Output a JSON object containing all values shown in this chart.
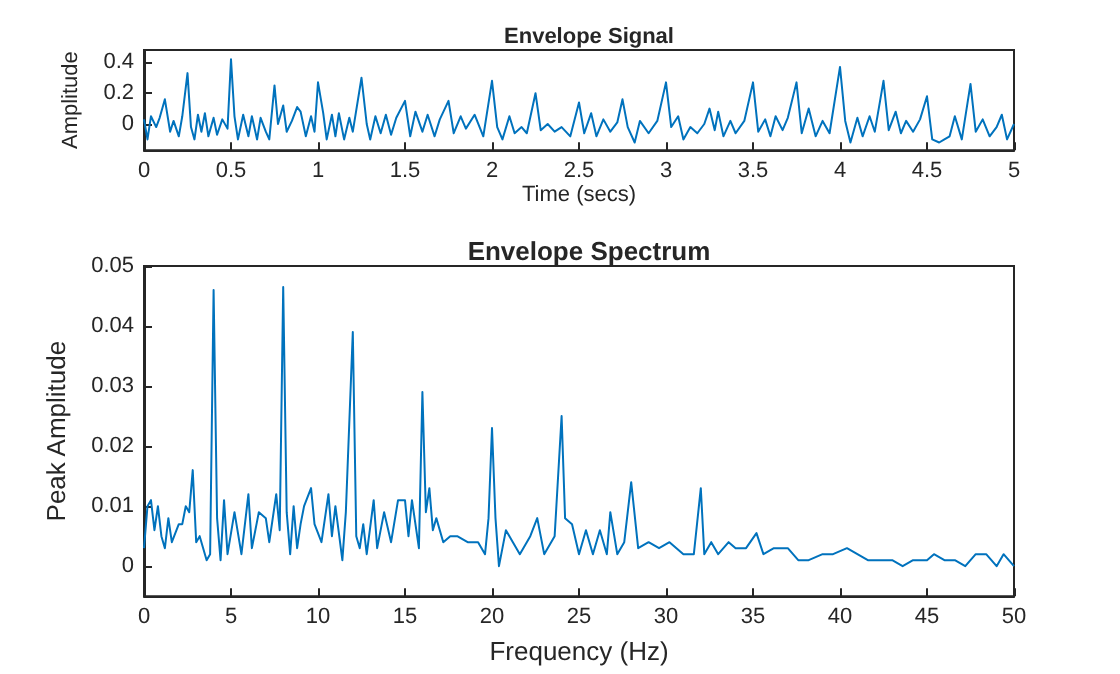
{
  "chart_data": [
    {
      "type": "line",
      "title": "Envelope Signal",
      "xlabel": "Time (secs)",
      "ylabel": "Amplitude",
      "xlim": [
        0,
        5
      ],
      "ylim": [
        -0.17,
        0.48
      ],
      "xticks": [
        0,
        0.5,
        1,
        1.5,
        2,
        2.5,
        3,
        3.5,
        4,
        4.5,
        5
      ],
      "yticks": [
        0,
        0.2,
        0.4
      ],
      "marker": "none",
      "line_style": "solid",
      "series": [
        {
          "color": "#0072bd",
          "x": [
            0,
            0.02,
            0.04,
            0.07,
            0.09,
            0.12,
            0.15,
            0.17,
            0.2,
            0.22,
            0.25,
            0.27,
            0.29,
            0.31,
            0.33,
            0.35,
            0.37,
            0.4,
            0.42,
            0.45,
            0.48,
            0.5,
            0.52,
            0.54,
            0.57,
            0.6,
            0.62,
            0.65,
            0.67,
            0.7,
            0.72,
            0.75,
            0.77,
            0.8,
            0.82,
            0.85,
            0.88,
            0.9,
            0.93,
            0.96,
            0.98,
            1.0,
            1.03,
            1.05,
            1.08,
            1.1,
            1.12,
            1.15,
            1.18,
            1.2,
            1.25,
            1.28,
            1.3,
            1.33,
            1.36,
            1.39,
            1.42,
            1.45,
            1.5,
            1.53,
            1.56,
            1.6,
            1.63,
            1.67,
            1.7,
            1.75,
            1.78,
            1.82,
            1.85,
            1.9,
            1.95,
            2.0,
            2.03,
            2.06,
            2.1,
            2.13,
            2.17,
            2.2,
            2.25,
            2.28,
            2.32,
            2.36,
            2.4,
            2.45,
            2.5,
            2.53,
            2.57,
            2.6,
            2.64,
            2.68,
            2.72,
            2.75,
            2.78,
            2.82,
            2.85,
            2.9,
            2.95,
            3.0,
            3.03,
            3.07,
            3.1,
            3.14,
            3.18,
            3.22,
            3.25,
            3.28,
            3.3,
            3.33,
            3.37,
            3.4,
            3.45,
            3.5,
            3.53,
            3.57,
            3.6,
            3.63,
            3.67,
            3.7,
            3.75,
            3.78,
            3.82,
            3.86,
            3.9,
            3.94,
            4.0,
            4.03,
            4.06,
            4.1,
            4.13,
            4.17,
            4.2,
            4.25,
            4.28,
            4.32,
            4.35,
            4.38,
            4.42,
            4.46,
            4.5,
            4.53,
            4.57,
            4.6,
            4.63,
            4.66,
            4.7,
            4.75,
            4.78,
            4.82,
            4.86,
            4.9,
            4.93,
            4.96,
            5.0
          ],
          "values": [
            0.03,
            -0.1,
            0.05,
            -0.02,
            0.04,
            0.16,
            -0.05,
            0.02,
            -0.08,
            0.05,
            0.33,
            -0.02,
            -0.1,
            0.06,
            -0.05,
            0.07,
            -0.08,
            0.04,
            -0.07,
            0.03,
            -0.03,
            0.42,
            0.05,
            -0.1,
            0.06,
            -0.08,
            0.05,
            -0.1,
            0.04,
            -0.05,
            -0.1,
            0.25,
            0.0,
            0.12,
            -0.05,
            0.02,
            0.11,
            0.08,
            -0.08,
            0.05,
            -0.05,
            0.27,
            0.07,
            -0.1,
            0.06,
            -0.08,
            0.07,
            -0.1,
            0.04,
            -0.05,
            0.3,
            0.0,
            -0.1,
            0.05,
            -0.06,
            0.06,
            -0.07,
            0.04,
            0.15,
            -0.08,
            0.08,
            -0.05,
            0.06,
            -0.08,
            0.03,
            0.15,
            -0.06,
            0.05,
            -0.03,
            0.06,
            -0.08,
            0.28,
            -0.02,
            -0.1,
            0.05,
            -0.06,
            -0.02,
            -0.06,
            0.2,
            -0.04,
            0.0,
            -0.05,
            -0.02,
            -0.08,
            0.14,
            -0.06,
            0.07,
            -0.08,
            0.03,
            -0.05,
            0.01,
            0.16,
            -0.02,
            -0.12,
            0.02,
            -0.06,
            0.02,
            0.27,
            -0.02,
            0.05,
            -0.1,
            -0.02,
            -0.06,
            0.0,
            0.1,
            -0.04,
            0.08,
            -0.08,
            0.02,
            -0.06,
            0.02,
            0.27,
            -0.05,
            0.03,
            -0.08,
            0.05,
            -0.04,
            0.04,
            0.27,
            -0.06,
            0.1,
            -0.08,
            0.02,
            -0.06,
            0.37,
            0.02,
            -0.12,
            0.04,
            -0.08,
            0.05,
            -0.05,
            0.28,
            -0.04,
            0.08,
            -0.06,
            0.02,
            -0.05,
            0.03,
            0.18,
            -0.1,
            -0.12,
            -0.1,
            -0.08,
            0.05,
            -0.1,
            0.26,
            -0.05,
            0.03,
            -0.08,
            -0.02,
            0.06,
            -0.1,
            0.0
          ]
        }
      ]
    },
    {
      "type": "line",
      "title": "Envelope Spectrum",
      "xlabel": "Frequency (Hz)",
      "ylabel": "Peak Amplitude",
      "xlim": [
        0,
        50
      ],
      "ylim": [
        -0.005,
        0.05
      ],
      "xticks": [
        0,
        5,
        10,
        15,
        20,
        25,
        30,
        35,
        40,
        45,
        50
      ],
      "yticks": [
        0,
        0.01,
        0.02,
        0.03,
        0.04,
        0.05
      ],
      "marker": "none",
      "line_style": "solid",
      "series": [
        {
          "color": "#0072bd",
          "x": [
            0,
            0.2,
            0.4,
            0.6,
            0.8,
            1.0,
            1.2,
            1.4,
            1.6,
            2.0,
            2.2,
            2.4,
            2.6,
            2.8,
            3.0,
            3.2,
            3.6,
            3.8,
            4.0,
            4.2,
            4.4,
            4.6,
            4.8,
            5.2,
            5.6,
            6.0,
            6.2,
            6.6,
            7.0,
            7.2,
            7.6,
            7.8,
            8.0,
            8.2,
            8.4,
            8.6,
            8.8,
            9.0,
            9.2,
            9.6,
            9.8,
            10.2,
            10.6,
            10.8,
            11.0,
            11.4,
            11.6,
            12.0,
            12.2,
            12.4,
            12.6,
            12.8,
            13.2,
            13.4,
            13.8,
            14.2,
            14.6,
            15.0,
            15.2,
            15.4,
            15.8,
            16.0,
            16.2,
            16.4,
            16.6,
            16.8,
            17.2,
            17.6,
            18.0,
            18.6,
            19.2,
            19.6,
            19.8,
            20.0,
            20.2,
            20.4,
            20.8,
            21.2,
            21.6,
            22.2,
            22.6,
            23.0,
            23.4,
            23.6,
            24.0,
            24.2,
            24.6,
            25.0,
            25.4,
            25.8,
            26.2,
            26.6,
            26.8,
            27.2,
            27.6,
            28.0,
            28.4,
            29.0,
            29.6,
            30.2,
            30.6,
            31.0,
            31.6,
            32.0,
            32.2,
            32.6,
            33.0,
            33.6,
            34.0,
            34.6,
            35.2,
            35.6,
            36.2,
            37.0,
            37.6,
            38.2,
            39.0,
            39.6,
            40.4,
            41.0,
            41.6,
            42.4,
            43.0,
            43.6,
            44.2,
            45.0,
            45.4,
            46.0,
            46.6,
            47.2,
            47.8,
            48.4,
            49.0,
            49.4,
            50.0
          ],
          "values": [
            0.003,
            0.01,
            0.011,
            0.006,
            0.01,
            0.005,
            0.003,
            0.008,
            0.004,
            0.007,
            0.007,
            0.01,
            0.009,
            0.016,
            0.004,
            0.005,
            0.001,
            0.002,
            0.046,
            0.008,
            0.001,
            0.011,
            0.002,
            0.009,
            0.002,
            0.012,
            0.003,
            0.009,
            0.008,
            0.004,
            0.012,
            0.006,
            0.0465,
            0.009,
            0.002,
            0.01,
            0.003,
            0.007,
            0.01,
            0.013,
            0.007,
            0.004,
            0.012,
            0.005,
            0.01,
            0.001,
            0.009,
            0.039,
            0.005,
            0.003,
            0.007,
            0.002,
            0.011,
            0.003,
            0.009,
            0.004,
            0.011,
            0.011,
            0.005,
            0.011,
            0.003,
            0.029,
            0.009,
            0.013,
            0.006,
            0.008,
            0.004,
            0.005,
            0.005,
            0.004,
            0.004,
            0.002,
            0.008,
            0.023,
            0.008,
            0.0,
            0.006,
            0.004,
            0.002,
            0.005,
            0.008,
            0.002,
            0.004,
            0.005,
            0.025,
            0.008,
            0.007,
            0.002,
            0.006,
            0.002,
            0.006,
            0.002,
            0.009,
            0.002,
            0.004,
            0.014,
            0.003,
            0.004,
            0.003,
            0.004,
            0.003,
            0.002,
            0.002,
            0.013,
            0.002,
            0.004,
            0.002,
            0.004,
            0.003,
            0.003,
            0.0055,
            0.002,
            0.003,
            0.003,
            0.001,
            0.001,
            0.002,
            0.002,
            0.003,
            0.002,
            0.001,
            0.001,
            0.001,
            0.0,
            0.001,
            0.001,
            0.002,
            0.001,
            0.001,
            0.0,
            0.002,
            0.002,
            0.0,
            0.002,
            0.0
          ]
        }
      ]
    }
  ]
}
